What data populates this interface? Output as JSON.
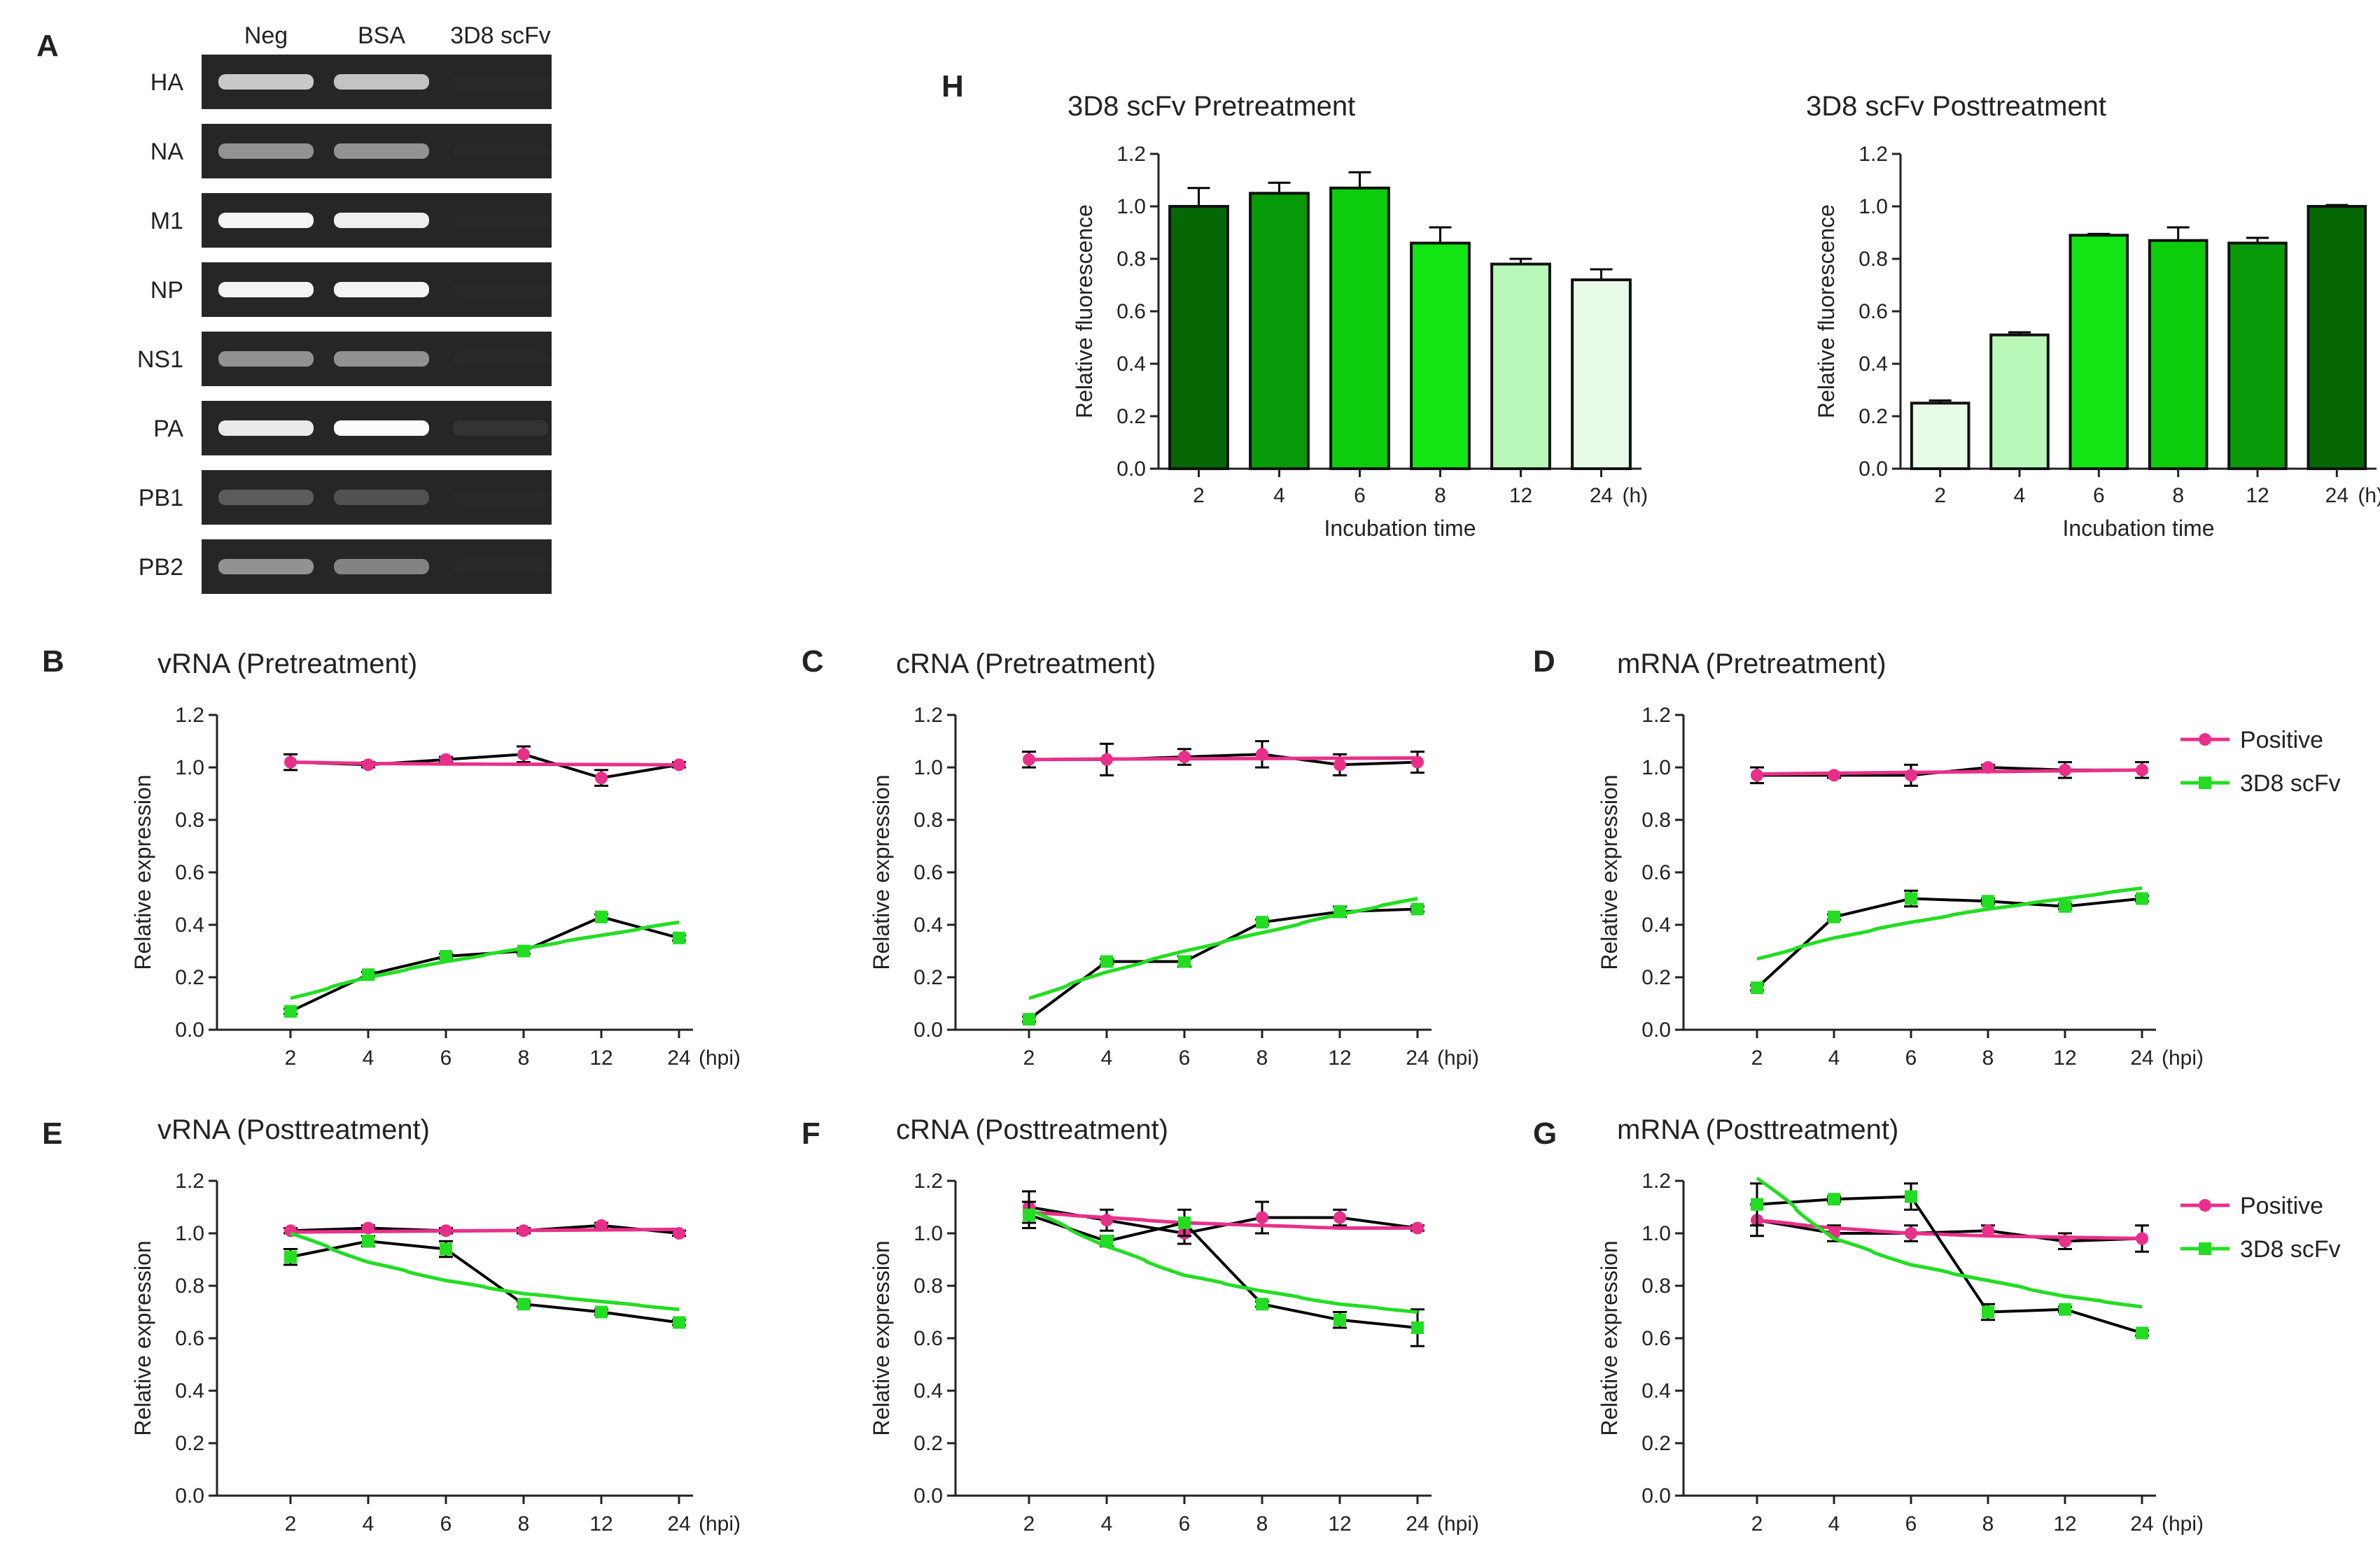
{
  "panels": {
    "A": "A",
    "B": "B",
    "C": "C",
    "D": "D",
    "E": "E",
    "F": "F",
    "G": "G",
    "H": "H"
  },
  "gel": {
    "columns": [
      "Neg",
      "BSA",
      "3D8 scFv"
    ],
    "rows": [
      {
        "label": "HA",
        "intensity": [
          0.75,
          0.72,
          0.02
        ]
      },
      {
        "label": "NA",
        "intensity": [
          0.55,
          0.55,
          0.02
        ]
      },
      {
        "label": "M1",
        "intensity": [
          0.95,
          0.92,
          0.02
        ]
      },
      {
        "label": "NP",
        "intensity": [
          0.95,
          0.95,
          0.02
        ]
      },
      {
        "label": "NS1",
        "intensity": [
          0.55,
          0.55,
          0.02
        ]
      },
      {
        "label": "PA",
        "intensity": [
          0.9,
          0.98,
          0.12
        ]
      },
      {
        "label": "PB1",
        "intensity": [
          0.35,
          0.3,
          0.02
        ]
      },
      {
        "label": "PB2",
        "intensity": [
          0.55,
          0.5,
          0.02
        ]
      }
    ]
  },
  "colors": {
    "positive": "#e8308a",
    "scfv": "#22dd22",
    "connector": "#000000",
    "bar_shades": [
      "#e8fbe8",
      "#b9f7b9",
      "#12e512",
      "#0ccc0c",
      "#089a08",
      "#056805"
    ]
  },
  "chart_data": [
    {
      "panel": "B",
      "type": "line",
      "title": "vRNA (Pretreatment)",
      "xlabel": "",
      "ylabel": "Relative expression",
      "x_unit": "(hpi)",
      "categories": [
        "2",
        "4",
        "6",
        "8",
        "12",
        "24"
      ],
      "ylim": [
        0,
        1.2
      ],
      "yticks": [
        "0.0",
        "0.2",
        "0.4",
        "0.6",
        "0.8",
        "1.0",
        "1.2"
      ],
      "series": [
        {
          "name": "Positive",
          "values": [
            1.02,
            1.01,
            1.03,
            1.05,
            0.96,
            1.01
          ],
          "errors": [
            0.03,
            0.01,
            0.01,
            0.03,
            0.03,
            0.01
          ],
          "fit": [
            1.02,
            1.015,
            1.013,
            1.012,
            1.011,
            1.01
          ]
        },
        {
          "name": "3D8 scFv",
          "values": [
            0.07,
            0.21,
            0.28,
            0.3,
            0.43,
            0.35
          ],
          "errors": [
            0.01,
            0.01,
            0.01,
            0.01,
            0.01,
            0.01
          ],
          "fit": [
            0.12,
            0.2,
            0.26,
            0.31,
            0.36,
            0.41
          ]
        }
      ]
    },
    {
      "panel": "C",
      "type": "line",
      "title": "cRNA (Pretreatment)",
      "xlabel": "",
      "ylabel": "Relative expression",
      "x_unit": "(hpi)",
      "categories": [
        "2",
        "4",
        "6",
        "8",
        "12",
        "24"
      ],
      "ylim": [
        0,
        1.2
      ],
      "yticks": [
        "0.0",
        "0.2",
        "0.4",
        "0.6",
        "0.8",
        "1.0",
        "1.2"
      ],
      "series": [
        {
          "name": "Positive",
          "values": [
            1.03,
            1.03,
            1.04,
            1.05,
            1.01,
            1.02
          ],
          "errors": [
            0.03,
            0.06,
            0.03,
            0.05,
            0.04,
            0.04
          ],
          "fit": [
            1.03,
            1.032,
            1.033,
            1.034,
            1.035,
            1.036
          ]
        },
        {
          "name": "3D8 scFv",
          "values": [
            0.04,
            0.26,
            0.26,
            0.41,
            0.45,
            0.46
          ],
          "errors": [
            0.01,
            0.01,
            0.02,
            0.01,
            0.02,
            0.01
          ],
          "fit": [
            0.12,
            0.22,
            0.3,
            0.37,
            0.44,
            0.5
          ]
        }
      ]
    },
    {
      "panel": "D",
      "type": "line",
      "title": "mRNA (Pretreatment)",
      "xlabel": "",
      "ylabel": "Relative expression",
      "x_unit": "(hpi)",
      "categories": [
        "2",
        "4",
        "6",
        "8",
        "12",
        "24"
      ],
      "ylim": [
        0,
        1.2
      ],
      "yticks": [
        "0.0",
        "0.2",
        "0.4",
        "0.6",
        "0.8",
        "1.0",
        "1.2"
      ],
      "legend": {
        "position": "top-right",
        "entries": [
          "Positive",
          "3D8 scFv"
        ]
      },
      "series": [
        {
          "name": "Positive",
          "values": [
            0.97,
            0.97,
            0.97,
            1.0,
            0.99,
            0.99
          ],
          "errors": [
            0.03,
            0.01,
            0.04,
            0.01,
            0.03,
            0.03
          ],
          "fit": [
            0.975,
            0.978,
            0.981,
            0.984,
            0.987,
            0.99
          ]
        },
        {
          "name": "3D8 scFv",
          "values": [
            0.16,
            0.43,
            0.5,
            0.49,
            0.47,
            0.5
          ],
          "errors": [
            0.01,
            0.01,
            0.03,
            0.01,
            0.01,
            0.01
          ],
          "fit": [
            0.27,
            0.35,
            0.41,
            0.46,
            0.5,
            0.54
          ]
        }
      ]
    },
    {
      "panel": "E",
      "type": "line",
      "title": "vRNA (Posttreatment)",
      "xlabel": "",
      "ylabel": "Relative expression",
      "x_unit": "(hpi)",
      "categories": [
        "2",
        "4",
        "6",
        "8",
        "12",
        "24"
      ],
      "ylim": [
        0,
        1.2
      ],
      "yticks": [
        "0.0",
        "0.2",
        "0.4",
        "0.6",
        "0.8",
        "1.0",
        "1.2"
      ],
      "series": [
        {
          "name": "Positive",
          "values": [
            1.01,
            1.02,
            1.01,
            1.01,
            1.03,
            1.0
          ],
          "errors": [
            0.01,
            0.01,
            0.01,
            0.01,
            0.01,
            0.01
          ],
          "fit": [
            1.005,
            1.007,
            1.009,
            1.011,
            1.013,
            1.015
          ]
        },
        {
          "name": "3D8 scFv",
          "values": [
            0.91,
            0.97,
            0.94,
            0.73,
            0.7,
            0.66
          ],
          "errors": [
            0.03,
            0.02,
            0.03,
            0.01,
            0.01,
            0.01
          ],
          "fit": [
            1.0,
            0.89,
            0.82,
            0.77,
            0.74,
            0.71
          ]
        }
      ]
    },
    {
      "panel": "F",
      "type": "line",
      "title": "cRNA (Posttreatment)",
      "xlabel": "",
      "ylabel": "Relative expression",
      "x_unit": "(hpi)",
      "categories": [
        "2",
        "4",
        "6",
        "8",
        "12",
        "24"
      ],
      "ylim": [
        0,
        1.2
      ],
      "yticks": [
        "0.0",
        "0.2",
        "0.4",
        "0.6",
        "0.8",
        "1.0",
        "1.2"
      ],
      "series": [
        {
          "name": "Positive",
          "values": [
            1.1,
            1.05,
            1.0,
            1.06,
            1.06,
            1.02
          ],
          "errors": [
            0.06,
            0.04,
            0.04,
            0.06,
            0.03,
            0.01
          ],
          "fit": [
            1.08,
            1.06,
            1.04,
            1.03,
            1.02,
            1.02
          ]
        },
        {
          "name": "3D8 scFv",
          "values": [
            1.07,
            0.97,
            1.04,
            0.73,
            0.67,
            0.64
          ],
          "errors": [
            0.05,
            0.02,
            0.05,
            0.01,
            0.03,
            0.07
          ],
          "fit": [
            1.09,
            0.95,
            0.84,
            0.78,
            0.73,
            0.7
          ]
        }
      ]
    },
    {
      "panel": "G",
      "type": "line",
      "title": "mRNA (Posttreatment)",
      "xlabel": "",
      "ylabel": "Relative expression",
      "x_unit": "(hpi)",
      "categories": [
        "2",
        "4",
        "6",
        "8",
        "12",
        "24"
      ],
      "ylim": [
        0,
        1.2
      ],
      "yticks": [
        "0.0",
        "0.2",
        "0.4",
        "0.6",
        "0.8",
        "1.0",
        "1.2"
      ],
      "legend": {
        "position": "top-right",
        "entries": [
          "Positive",
          "3D8 scFv"
        ]
      },
      "series": [
        {
          "name": "Positive",
          "values": [
            1.05,
            1.0,
            1.0,
            1.01,
            0.97,
            0.98
          ],
          "errors": [
            0.06,
            0.03,
            0.03,
            0.02,
            0.03,
            0.05
          ],
          "fit": [
            1.05,
            1.02,
            1.0,
            0.99,
            0.985,
            0.98
          ]
        },
        {
          "name": "3D8 scFv",
          "values": [
            1.11,
            1.13,
            1.14,
            0.7,
            0.71,
            0.62
          ],
          "errors": [
            0.08,
            0.01,
            0.05,
            0.03,
            0.01,
            0.01
          ],
          "fit": [
            1.21,
            0.98,
            0.88,
            0.82,
            0.76,
            0.72
          ]
        }
      ]
    },
    {
      "panel": "H",
      "type": "bar",
      "title": "3D8 scFv Pretreatment",
      "xlabel": "Incubation time",
      "ylabel": "Relative fluorescence",
      "x_unit": "(h)",
      "categories": [
        "2",
        "4",
        "6",
        "8",
        "12",
        "24"
      ],
      "ylim": [
        0,
        1.2
      ],
      "yticks": [
        "0.0",
        "0.2",
        "0.4",
        "0.6",
        "0.8",
        "1.0",
        "1.2"
      ],
      "values": [
        1.0,
        1.05,
        1.07,
        0.86,
        0.78,
        0.72
      ],
      "errors": [
        0.07,
        0.04,
        0.06,
        0.06,
        0.02,
        0.04
      ],
      "shade_order": [
        5,
        4,
        3,
        2,
        1,
        0
      ]
    },
    {
      "panel": "H",
      "type": "bar",
      "title": "3D8 scFv Posttreatment",
      "xlabel": "Incubation time",
      "ylabel": "Relative fluorescence",
      "x_unit": "(h)",
      "categories": [
        "2",
        "4",
        "6",
        "8",
        "12",
        "24"
      ],
      "ylim": [
        0,
        1.2
      ],
      "yticks": [
        "0.0",
        "0.2",
        "0.4",
        "0.6",
        "0.8",
        "1.0",
        "1.2"
      ],
      "values": [
        0.25,
        0.51,
        0.89,
        0.87,
        0.86,
        1.0
      ],
      "errors": [
        0.01,
        0.01,
        0.005,
        0.05,
        0.02,
        0.005
      ],
      "shade_order": [
        0,
        1,
        2,
        3,
        4,
        5
      ]
    }
  ]
}
